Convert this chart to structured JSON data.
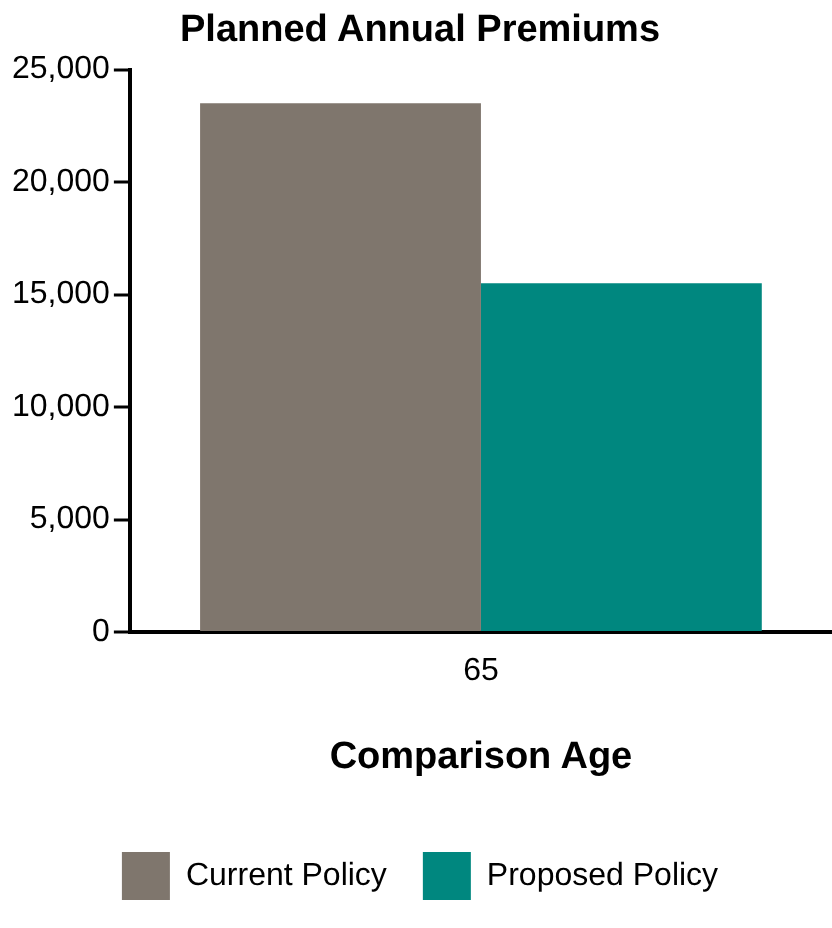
{
  "chart_data": {
    "type": "bar",
    "title": "Planned Annual Premiums",
    "xlabel": "Comparison Age",
    "categories": [
      "65"
    ],
    "series": [
      {
        "name": "Current Policy",
        "color": "#7f766d",
        "values": [
          23500
        ]
      },
      {
        "name": "Proposed Policy",
        "color": "#00877f",
        "values": [
          15500
        ]
      }
    ],
    "ylim": [
      0,
      25000
    ],
    "yticks": [
      {
        "value": 0,
        "label": "0"
      },
      {
        "value": 5000,
        "label": "5,000"
      },
      {
        "value": 10000,
        "label": "10,000"
      },
      {
        "value": 15000,
        "label": "15,000"
      },
      {
        "value": 20000,
        "label": "20,000"
      },
      {
        "value": 25000,
        "label": "25,000"
      }
    ],
    "grid": false,
    "legend": "bottom"
  }
}
